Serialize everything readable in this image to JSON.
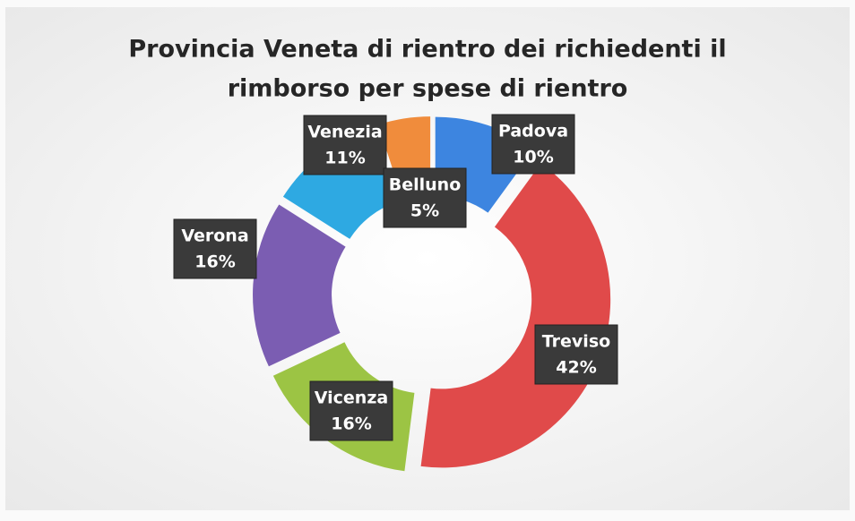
{
  "chart_data": {
    "type": "donut",
    "title": [
      "Provincia Veneta di rientro dei richiedenti il",
      "rimborso per spese di rientro"
    ],
    "categories": [
      "Padova",
      "Treviso",
      "Vicenza",
      "Verona",
      "Venezia",
      "Belluno"
    ],
    "values": [
      10,
      42,
      16,
      16,
      11,
      5
    ],
    "value_labels": [
      "10%",
      "42%",
      "16%",
      "16%",
      "11%",
      "5%"
    ],
    "colors": [
      "#3d85e0",
      "#e04a4a",
      "#9cc444",
      "#7b5db2",
      "#2ea9e2",
      "#f08c3c"
    ]
  }
}
